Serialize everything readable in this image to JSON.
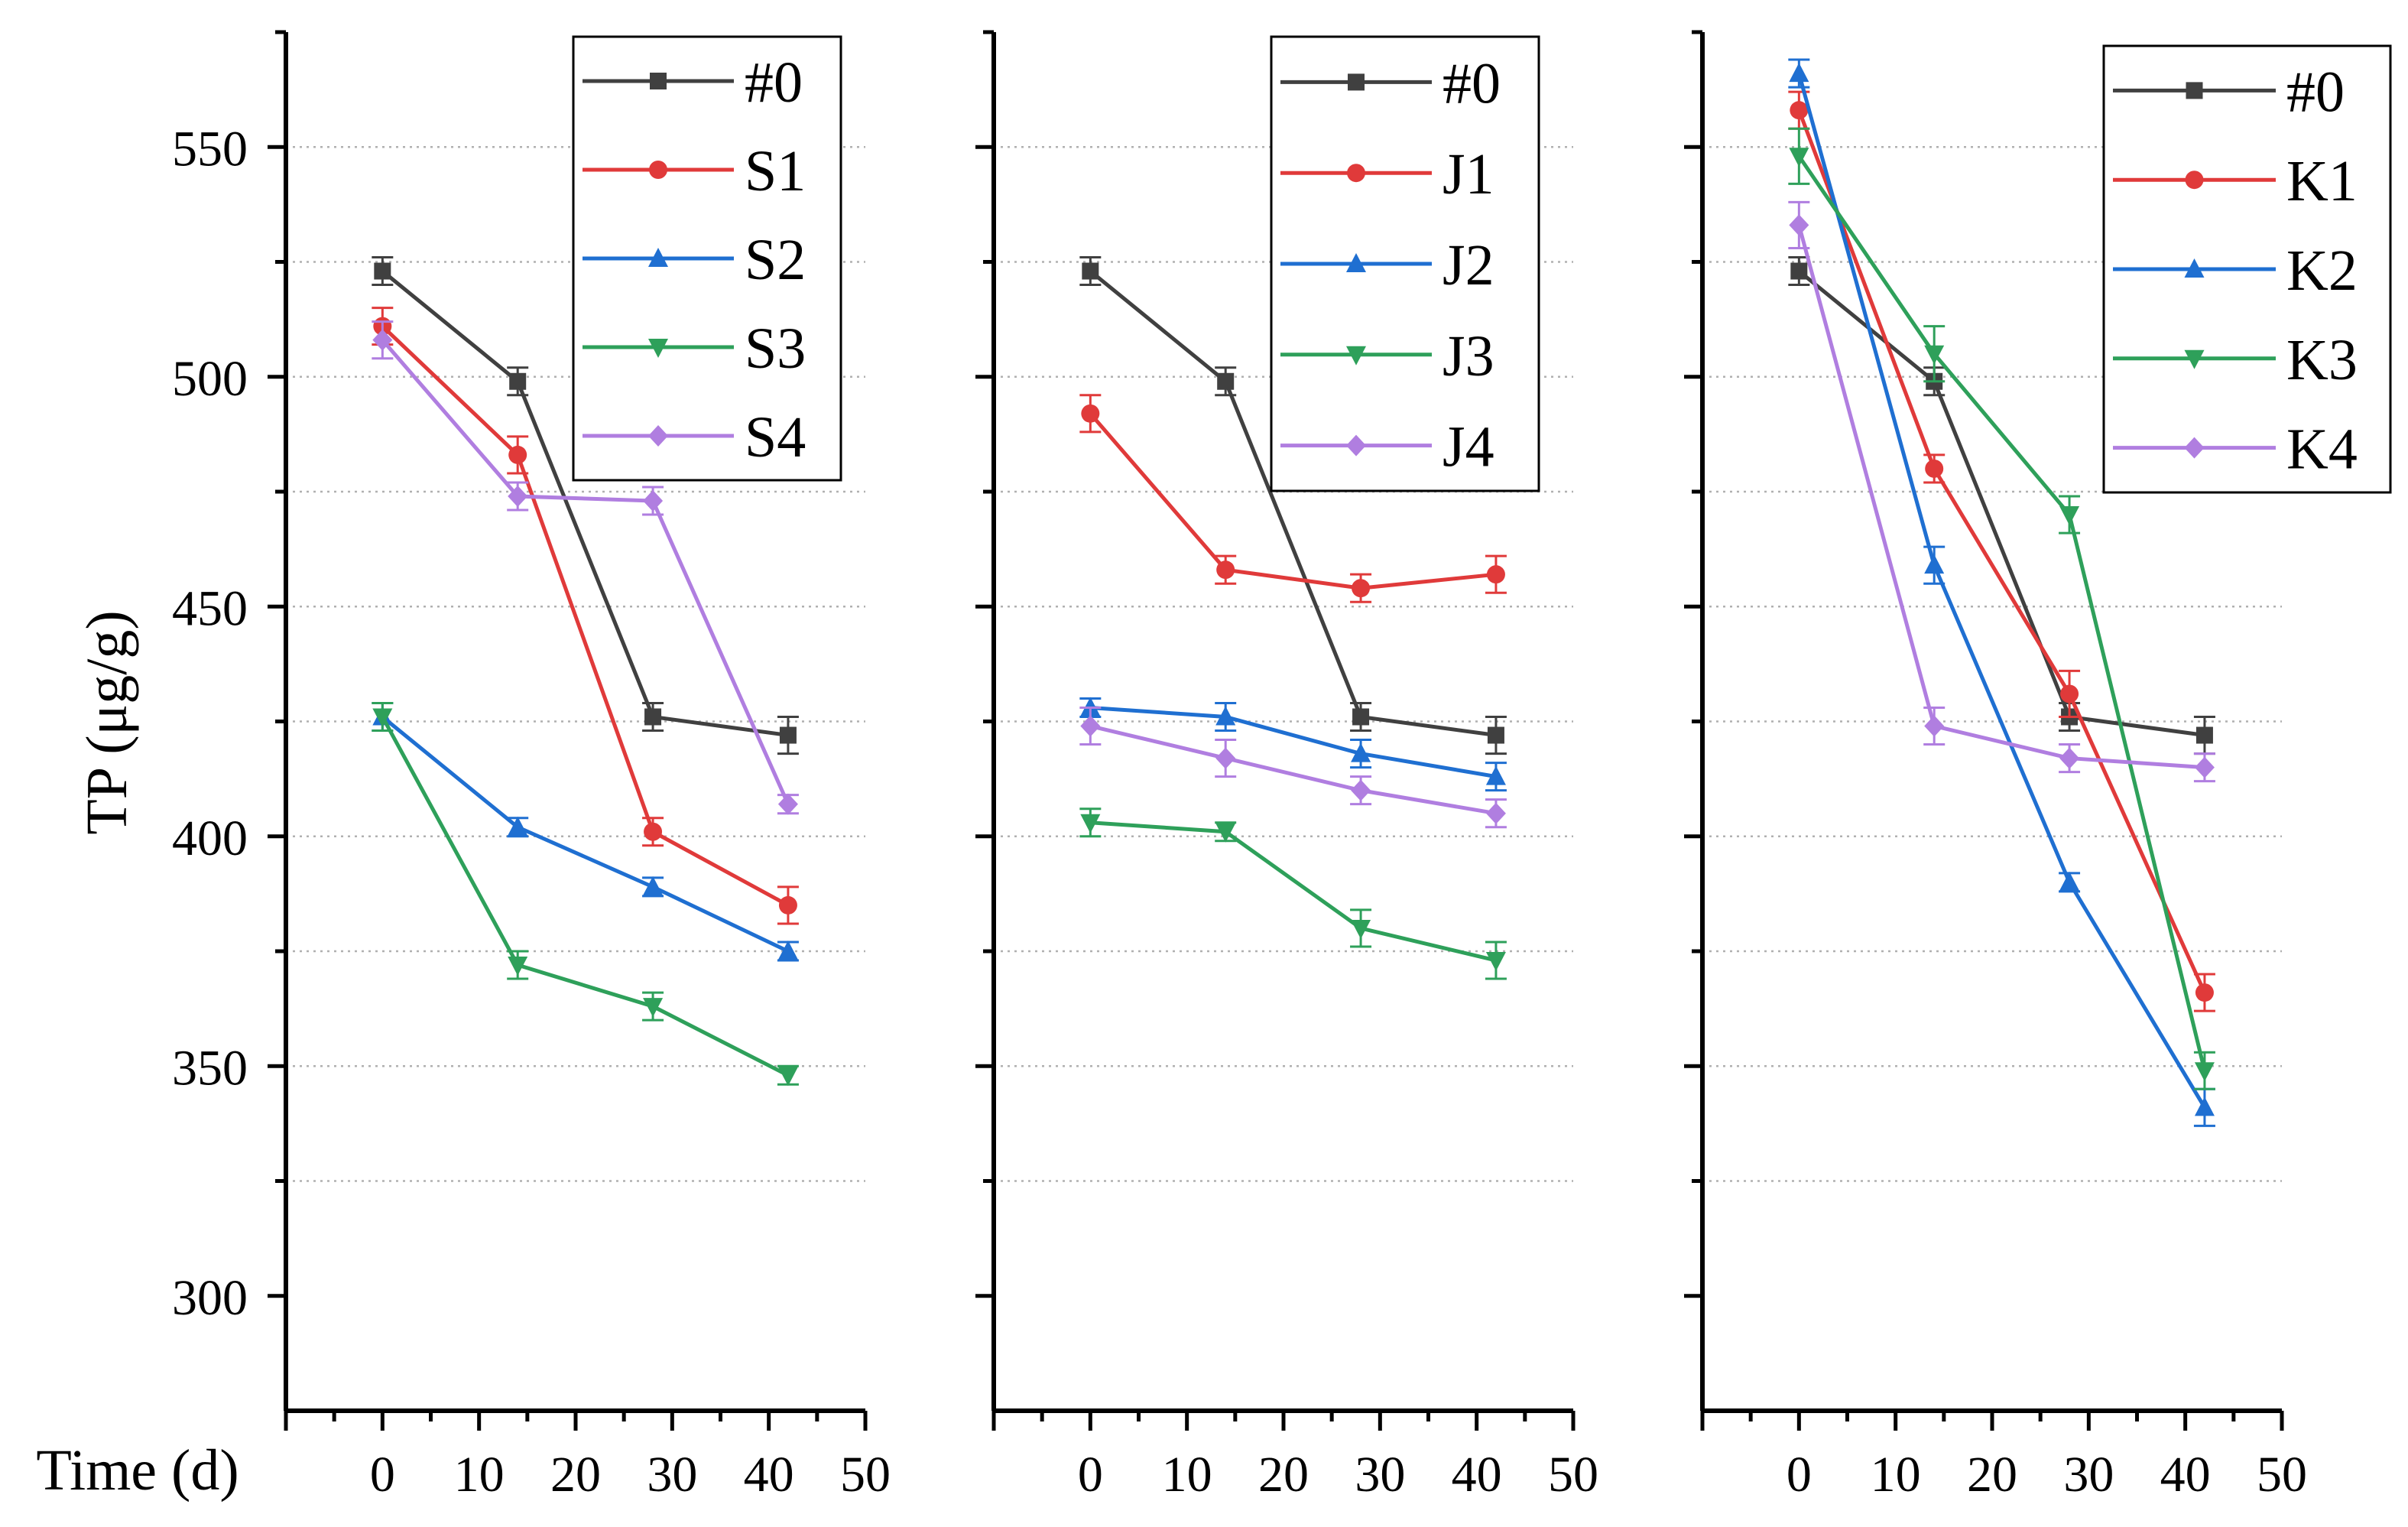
{
  "chart_data": {
    "type": "line",
    "x_values": [
      0,
      14,
      28,
      42
    ],
    "y_axis_label": "TP (μg/g)",
    "x_axis_label": "Time (d)",
    "xlim": [
      -10,
      50
    ],
    "ylim": [
      275,
      575
    ],
    "x_ticks": [
      0,
      10,
      20,
      30,
      40,
      50
    ],
    "y_ticks": [
      300,
      350,
      400,
      450,
      500,
      550
    ],
    "grid": "horizontal dotted",
    "panels": [
      {
        "legend_position": "top-right",
        "series": [
          {
            "name": "#0",
            "color": "#404040",
            "marker": "square",
            "values": [
              523,
              499,
              426,
              422
            ],
            "errors": [
              3,
              3,
              3,
              4
            ]
          },
          {
            "name": "S1",
            "color": "#e03a3a",
            "marker": "circle",
            "values": [
              511,
              483,
              401,
              385
            ],
            "errors": [
              4,
              4,
              3,
              4
            ]
          },
          {
            "name": "S2",
            "color": "#1f6fd1",
            "marker": "triangle-up",
            "values": [
              426,
              402,
              389,
              375
            ],
            "errors": [
              3,
              2,
              2,
              2
            ]
          },
          {
            "name": "S3",
            "color": "#2ea05a",
            "marker": "triangle-down",
            "values": [
              426,
              372,
              363,
              348
            ],
            "errors": [
              3,
              3,
              3,
              2
            ]
          },
          {
            "name": "S4",
            "color": "#b07ee0",
            "marker": "diamond",
            "values": [
              508,
              474,
              473,
              407
            ],
            "errors": [
              4,
              3,
              3,
              2
            ]
          }
        ]
      },
      {
        "legend_position": "top-right",
        "series": [
          {
            "name": "#0",
            "color": "#404040",
            "marker": "square",
            "values": [
              523,
              499,
              426,
              422
            ],
            "errors": [
              3,
              3,
              3,
              4
            ]
          },
          {
            "name": "J1",
            "color": "#e03a3a",
            "marker": "circle",
            "values": [
              492,
              458,
              454,
              457
            ],
            "errors": [
              4,
              3,
              3,
              4
            ]
          },
          {
            "name": "J2",
            "color": "#1f6fd1",
            "marker": "triangle-up",
            "values": [
              428,
              426,
              418,
              413
            ],
            "errors": [
              2,
              3,
              3,
              3
            ]
          },
          {
            "name": "J3",
            "color": "#2ea05a",
            "marker": "triangle-down",
            "values": [
              403,
              401,
              380,
              373
            ],
            "errors": [
              3,
              2,
              4,
              4
            ]
          },
          {
            "name": "J4",
            "color": "#b07ee0",
            "marker": "diamond",
            "values": [
              424,
              417,
              410,
              405
            ],
            "errors": [
              4,
              4,
              3,
              3
            ]
          }
        ]
      },
      {
        "legend_position": "top-right",
        "series": [
          {
            "name": "#0",
            "color": "#404040",
            "marker": "square",
            "values": [
              523,
              499,
              426,
              422
            ],
            "errors": [
              3,
              3,
              3,
              4
            ]
          },
          {
            "name": "K1",
            "color": "#e03a3a",
            "marker": "circle",
            "values": [
              558,
              480,
              431,
              366
            ],
            "errors": [
              4,
              3,
              5,
              4
            ]
          },
          {
            "name": "K2",
            "color": "#1f6fd1",
            "marker": "triangle-up",
            "values": [
              566,
              459,
              390,
              341
            ],
            "errors": [
              3,
              4,
              2,
              4
            ]
          },
          {
            "name": "K3",
            "color": "#2ea05a",
            "marker": "triangle-down",
            "values": [
              548,
              505,
              470,
              349
            ],
            "errors": [
              6,
              6,
              4,
              4
            ]
          },
          {
            "name": "K4",
            "color": "#b07ee0",
            "marker": "diamond",
            "values": [
              533,
              424,
              417,
              415
            ],
            "errors": [
              5,
              4,
              3,
              3
            ]
          }
        ]
      }
    ]
  }
}
